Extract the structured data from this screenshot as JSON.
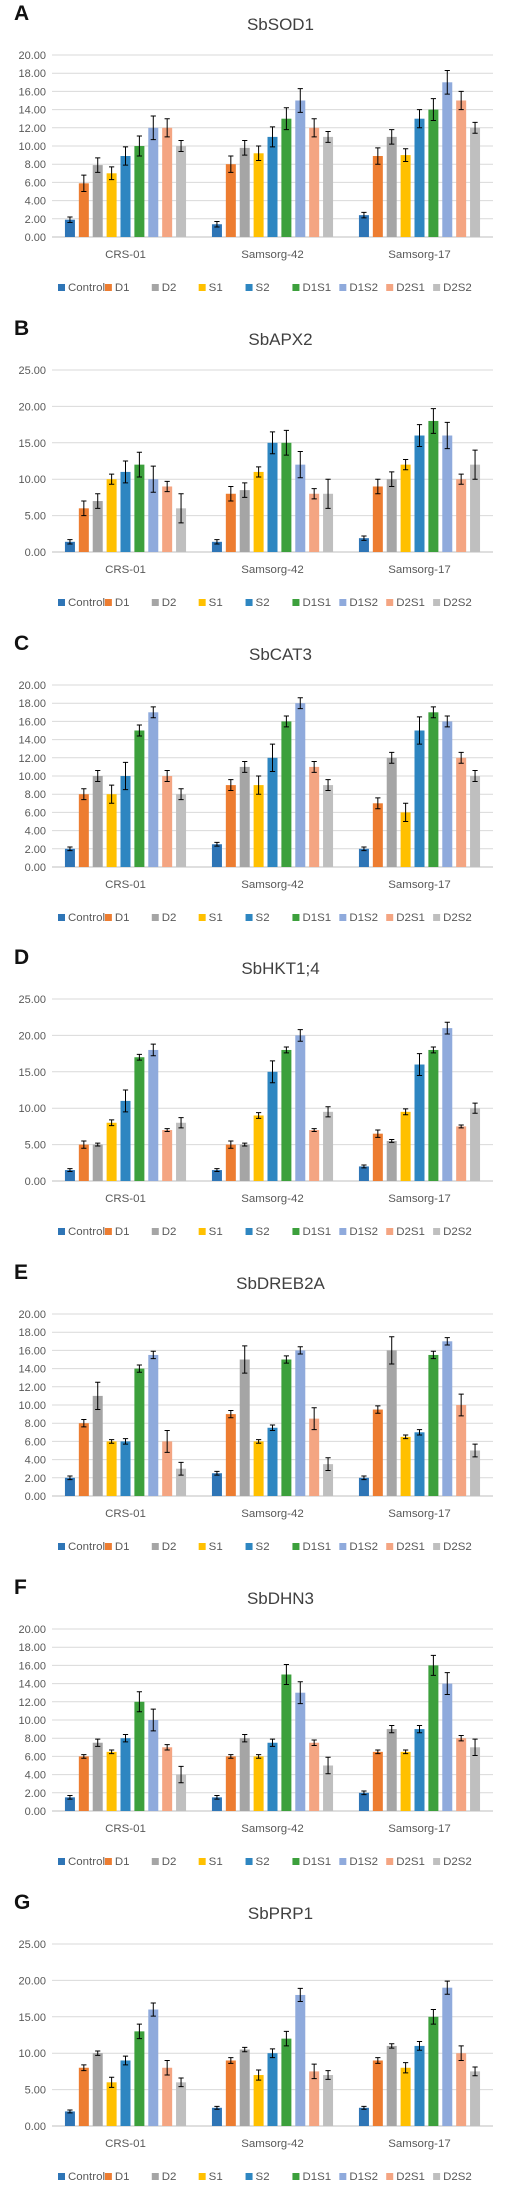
{
  "colors": {
    "series": [
      "#2E75B6",
      "#ED7D31",
      "#A5A5A5",
      "#FFC000",
      "#2E86C1",
      "#3CA03C",
      "#8FAADC",
      "#F4A582",
      "#BFBFBF"
    ],
    "grid": "#D9D9D9",
    "axis": "#BFBFBF",
    "text": "#595959",
    "title": "#404040"
  },
  "chart_data": [
    {
      "type": "bar",
      "panel": "A",
      "title": "SbSOD1",
      "categories": [
        "CRS-01",
        "Samsorg-42",
        "Samsorg-17"
      ],
      "ylim": [
        0,
        20
      ],
      "yticks": [
        "0.00",
        "2.00",
        "4.00",
        "6.00",
        "8.00",
        "10.00",
        "12.00",
        "14.00",
        "16.00",
        "18.00",
        "20.00"
      ],
      "grid": true,
      "legend": "bottom",
      "error_bars": true,
      "series": [
        {
          "name": "Control",
          "values": [
            1.9,
            1.4,
            2.4
          ],
          "errors": [
            0.3,
            0.3,
            0.3
          ]
        },
        {
          "name": "D1",
          "values": [
            5.9,
            8.0,
            8.9
          ],
          "errors": [
            0.9,
            0.9,
            0.9
          ]
        },
        {
          "name": "D2",
          "values": [
            7.9,
            9.8,
            11.0
          ],
          "errors": [
            0.8,
            0.8,
            0.8
          ]
        },
        {
          "name": "S1",
          "values": [
            7.0,
            9.2,
            9.0
          ],
          "errors": [
            0.7,
            0.8,
            0.7
          ]
        },
        {
          "name": "S2",
          "values": [
            8.9,
            11.0,
            13.0
          ],
          "errors": [
            1.0,
            1.1,
            1.0
          ]
        },
        {
          "name": "D1S1",
          "values": [
            10.0,
            13.0,
            14.0
          ],
          "errors": [
            1.1,
            1.2,
            1.2
          ]
        },
        {
          "name": "D1S2",
          "values": [
            12.0,
            15.0,
            17.0
          ],
          "errors": [
            1.3,
            1.3,
            1.3
          ]
        },
        {
          "name": "D2S1",
          "values": [
            12.0,
            12.0,
            15.0
          ],
          "errors": [
            1.0,
            1.0,
            1.0
          ]
        },
        {
          "name": "D2S2",
          "values": [
            10.0,
            11.0,
            12.0
          ],
          "errors": [
            0.6,
            0.6,
            0.6
          ]
        }
      ]
    },
    {
      "type": "bar",
      "panel": "B",
      "title": "SbAPX2",
      "categories": [
        "CRS-01",
        "Samsorg-42",
        "Samsorg-17"
      ],
      "ylim": [
        0,
        25
      ],
      "yticks": [
        "0.00",
        "5.00",
        "10.00",
        "15.00",
        "20.00",
        "25.00"
      ],
      "grid": true,
      "legend": "bottom",
      "error_bars": true,
      "series": [
        {
          "name": "Control",
          "values": [
            1.4,
            1.4,
            1.9
          ],
          "errors": [
            0.3,
            0.3,
            0.3
          ]
        },
        {
          "name": "D1",
          "values": [
            6.0,
            8.0,
            9.0
          ],
          "errors": [
            1.0,
            1.0,
            1.0
          ]
        },
        {
          "name": "D2",
          "values": [
            7.0,
            8.5,
            10.0
          ],
          "errors": [
            1.0,
            1.0,
            1.0
          ]
        },
        {
          "name": "S1",
          "values": [
            10.0,
            11.0,
            12.0
          ],
          "errors": [
            0.7,
            0.7,
            0.7
          ]
        },
        {
          "name": "S2",
          "values": [
            11.0,
            15.0,
            16.0
          ],
          "errors": [
            1.5,
            1.5,
            1.5
          ]
        },
        {
          "name": "D1S1",
          "values": [
            12.0,
            15.0,
            18.0
          ],
          "errors": [
            1.7,
            1.7,
            1.7
          ]
        },
        {
          "name": "D1S2",
          "values": [
            10.0,
            12.0,
            16.0
          ],
          "errors": [
            1.8,
            1.8,
            1.8
          ]
        },
        {
          "name": "D2S1",
          "values": [
            9.0,
            8.0,
            10.0
          ],
          "errors": [
            0.7,
            0.7,
            0.7
          ]
        },
        {
          "name": "D2S2",
          "values": [
            6.0,
            8.0,
            12.0
          ],
          "errors": [
            2.0,
            2.0,
            2.0
          ]
        }
      ]
    },
    {
      "type": "bar",
      "panel": "C",
      "title": "SbCAT3",
      "categories": [
        "CRS-01",
        "Samsorg-42",
        "Samsorg-17"
      ],
      "ylim": [
        0,
        20
      ],
      "yticks": [
        "0.00",
        "2.00",
        "4.00",
        "6.00",
        "8.00",
        "10.00",
        "12.00",
        "14.00",
        "16.00",
        "18.00",
        "20.00"
      ],
      "grid": true,
      "legend": "bottom",
      "error_bars": true,
      "series": [
        {
          "name": "Control",
          "values": [
            2.0,
            2.5,
            2.0
          ],
          "errors": [
            0.2,
            0.2,
            0.2
          ]
        },
        {
          "name": "D1",
          "values": [
            8.0,
            9.0,
            7.0
          ],
          "errors": [
            0.6,
            0.6,
            0.6
          ]
        },
        {
          "name": "D2",
          "values": [
            10.0,
            11.0,
            12.0
          ],
          "errors": [
            0.6,
            0.6,
            0.6
          ]
        },
        {
          "name": "S1",
          "values": [
            8.0,
            9.0,
            6.0
          ],
          "errors": [
            1.0,
            1.0,
            1.0
          ]
        },
        {
          "name": "S2",
          "values": [
            10.0,
            12.0,
            15.0
          ],
          "errors": [
            1.5,
            1.5,
            1.5
          ]
        },
        {
          "name": "D1S1",
          "values": [
            15.0,
            16.0,
            17.0
          ],
          "errors": [
            0.6,
            0.6,
            0.6
          ]
        },
        {
          "name": "D1S2",
          "values": [
            17.0,
            18.0,
            16.0
          ],
          "errors": [
            0.6,
            0.6,
            0.6
          ]
        },
        {
          "name": "D2S1",
          "values": [
            10.0,
            11.0,
            12.0
          ],
          "errors": [
            0.6,
            0.6,
            0.6
          ]
        },
        {
          "name": "D2S2",
          "values": [
            8.0,
            9.0,
            10.0
          ],
          "errors": [
            0.6,
            0.6,
            0.6
          ]
        }
      ]
    },
    {
      "type": "bar",
      "panel": "D",
      "title": "SbHKT1;4",
      "categories": [
        "CRS-01",
        "Samsorg-42",
        "Samsorg-17"
      ],
      "ylim": [
        0,
        25
      ],
      "yticks": [
        "0.00",
        "5.00",
        "10.00",
        "15.00",
        "20.00",
        "25.00"
      ],
      "grid": true,
      "legend": "bottom",
      "error_bars": true,
      "series": [
        {
          "name": "Control",
          "values": [
            1.5,
            1.5,
            2.0
          ],
          "errors": [
            0.2,
            0.2,
            0.2
          ]
        },
        {
          "name": "D1",
          "values": [
            5.0,
            5.0,
            6.5
          ],
          "errors": [
            0.5,
            0.5,
            0.5
          ]
        },
        {
          "name": "D2",
          "values": [
            5.0,
            5.0,
            5.5
          ],
          "errors": [
            0.2,
            0.2,
            0.2
          ]
        },
        {
          "name": "S1",
          "values": [
            8.0,
            9.0,
            9.5
          ],
          "errors": [
            0.4,
            0.4,
            0.4
          ]
        },
        {
          "name": "S2",
          "values": [
            11.0,
            15.0,
            16.0
          ],
          "errors": [
            1.5,
            1.5,
            1.5
          ]
        },
        {
          "name": "D1S1",
          "values": [
            17.0,
            18.0,
            18.0
          ],
          "errors": [
            0.4,
            0.4,
            0.4
          ]
        },
        {
          "name": "D1S2",
          "values": [
            18.0,
            20.0,
            21.0
          ],
          "errors": [
            0.8,
            0.8,
            0.8
          ]
        },
        {
          "name": "D2S1",
          "values": [
            7.0,
            7.0,
            7.5
          ],
          "errors": [
            0.2,
            0.2,
            0.2
          ]
        },
        {
          "name": "D2S2",
          "values": [
            8.0,
            9.5,
            10.0
          ],
          "errors": [
            0.7,
            0.7,
            0.7
          ]
        }
      ]
    },
    {
      "type": "bar",
      "panel": "E",
      "title": "SbDREB2A",
      "categories": [
        "CRS-01",
        "Samsorg-42",
        "Samsorg-17"
      ],
      "ylim": [
        0,
        20
      ],
      "yticks": [
        "0.00",
        "2.00",
        "4.00",
        "6.00",
        "8.00",
        "10.00",
        "12.00",
        "14.00",
        "16.00",
        "18.00",
        "20.00"
      ],
      "grid": true,
      "legend": "bottom",
      "error_bars": true,
      "series": [
        {
          "name": "Control",
          "values": [
            2.0,
            2.5,
            2.0
          ],
          "errors": [
            0.2,
            0.2,
            0.2
          ]
        },
        {
          "name": "D1",
          "values": [
            8.0,
            9.0,
            9.5
          ],
          "errors": [
            0.4,
            0.4,
            0.4
          ]
        },
        {
          "name": "D2",
          "values": [
            11.0,
            15.0,
            16.0
          ],
          "errors": [
            1.5,
            1.5,
            1.5
          ]
        },
        {
          "name": "S1",
          "values": [
            6.0,
            6.0,
            6.5
          ],
          "errors": [
            0.2,
            0.2,
            0.2
          ]
        },
        {
          "name": "S2",
          "values": [
            6.0,
            7.5,
            7.0
          ],
          "errors": [
            0.3,
            0.3,
            0.3
          ]
        },
        {
          "name": "D1S1",
          "values": [
            14.0,
            15.0,
            15.5
          ],
          "errors": [
            0.4,
            0.4,
            0.4
          ]
        },
        {
          "name": "D1S2",
          "values": [
            15.5,
            16.0,
            17.0
          ],
          "errors": [
            0.4,
            0.4,
            0.4
          ]
        },
        {
          "name": "D2S1",
          "values": [
            6.0,
            8.5,
            10.0
          ],
          "errors": [
            1.2,
            1.2,
            1.2
          ]
        },
        {
          "name": "D2S2",
          "values": [
            3.0,
            3.5,
            5.0
          ],
          "errors": [
            0.7,
            0.7,
            0.7
          ]
        }
      ]
    },
    {
      "type": "bar",
      "panel": "F",
      "title": "SbDHN3",
      "categories": [
        "CRS-01",
        "Samsorg-42",
        "Samsorg-17"
      ],
      "ylim": [
        0,
        20
      ],
      "yticks": [
        "0.00",
        "2.00",
        "4.00",
        "6.00",
        "8.00",
        "10.00",
        "12.00",
        "14.00",
        "16.00",
        "18.00",
        "20.00"
      ],
      "grid": true,
      "legend": "bottom",
      "error_bars": true,
      "series": [
        {
          "name": "Control",
          "values": [
            1.5,
            1.5,
            2.0
          ],
          "errors": [
            0.2,
            0.2,
            0.2
          ]
        },
        {
          "name": "D1",
          "values": [
            6.0,
            6.0,
            6.5
          ],
          "errors": [
            0.2,
            0.2,
            0.2
          ]
        },
        {
          "name": "D2",
          "values": [
            7.5,
            8.0,
            9.0
          ],
          "errors": [
            0.4,
            0.4,
            0.4
          ]
        },
        {
          "name": "S1",
          "values": [
            6.5,
            6.0,
            6.5
          ],
          "errors": [
            0.2,
            0.2,
            0.2
          ]
        },
        {
          "name": "S2",
          "values": [
            8.0,
            7.5,
            9.0
          ],
          "errors": [
            0.4,
            0.4,
            0.4
          ]
        },
        {
          "name": "D1S1",
          "values": [
            12.0,
            15.0,
            16.0
          ],
          "errors": [
            1.1,
            1.1,
            1.1
          ]
        },
        {
          "name": "D1S2",
          "values": [
            10.0,
            13.0,
            14.0
          ],
          "errors": [
            1.2,
            1.2,
            1.2
          ]
        },
        {
          "name": "D2S1",
          "values": [
            7.0,
            7.5,
            8.0
          ],
          "errors": [
            0.3,
            0.3,
            0.3
          ]
        },
        {
          "name": "D2S2",
          "values": [
            4.0,
            5.0,
            7.0
          ],
          "errors": [
            0.9,
            0.9,
            0.9
          ]
        }
      ]
    },
    {
      "type": "bar",
      "panel": "G",
      "title": "SbPRP1",
      "categories": [
        "CRS-01",
        "Samsorg-42",
        "Samsorg-17"
      ],
      "ylim": [
        0,
        25
      ],
      "yticks": [
        "0.00",
        "5.00",
        "10.00",
        "15.00",
        "20.00",
        "25.00"
      ],
      "grid": true,
      "legend": "bottom",
      "error_bars": true,
      "series": [
        {
          "name": "Control",
          "values": [
            2.0,
            2.5,
            2.5
          ],
          "errors": [
            0.2,
            0.2,
            0.2
          ]
        },
        {
          "name": "D1",
          "values": [
            8.0,
            9.0,
            9.0
          ],
          "errors": [
            0.4,
            0.4,
            0.4
          ]
        },
        {
          "name": "D2",
          "values": [
            10.0,
            10.5,
            11.0
          ],
          "errors": [
            0.3,
            0.3,
            0.3
          ]
        },
        {
          "name": "S1",
          "values": [
            6.0,
            7.0,
            8.0
          ],
          "errors": [
            0.7,
            0.7,
            0.7
          ]
        },
        {
          "name": "S2",
          "values": [
            9.0,
            10.0,
            11.0
          ],
          "errors": [
            0.6,
            0.6,
            0.6
          ]
        },
        {
          "name": "D1S1",
          "values": [
            13.0,
            12.0,
            15.0
          ],
          "errors": [
            1.0,
            1.0,
            1.0
          ]
        },
        {
          "name": "D1S2",
          "values": [
            16.0,
            18.0,
            19.0
          ],
          "errors": [
            0.9,
            0.9,
            0.9
          ]
        },
        {
          "name": "D2S1",
          "values": [
            8.0,
            7.5,
            10.0
          ],
          "errors": [
            1.0,
            1.0,
            1.0
          ]
        },
        {
          "name": "D2S2",
          "values": [
            6.0,
            7.0,
            7.5
          ],
          "errors": [
            0.6,
            0.6,
            0.6
          ]
        }
      ]
    }
  ]
}
